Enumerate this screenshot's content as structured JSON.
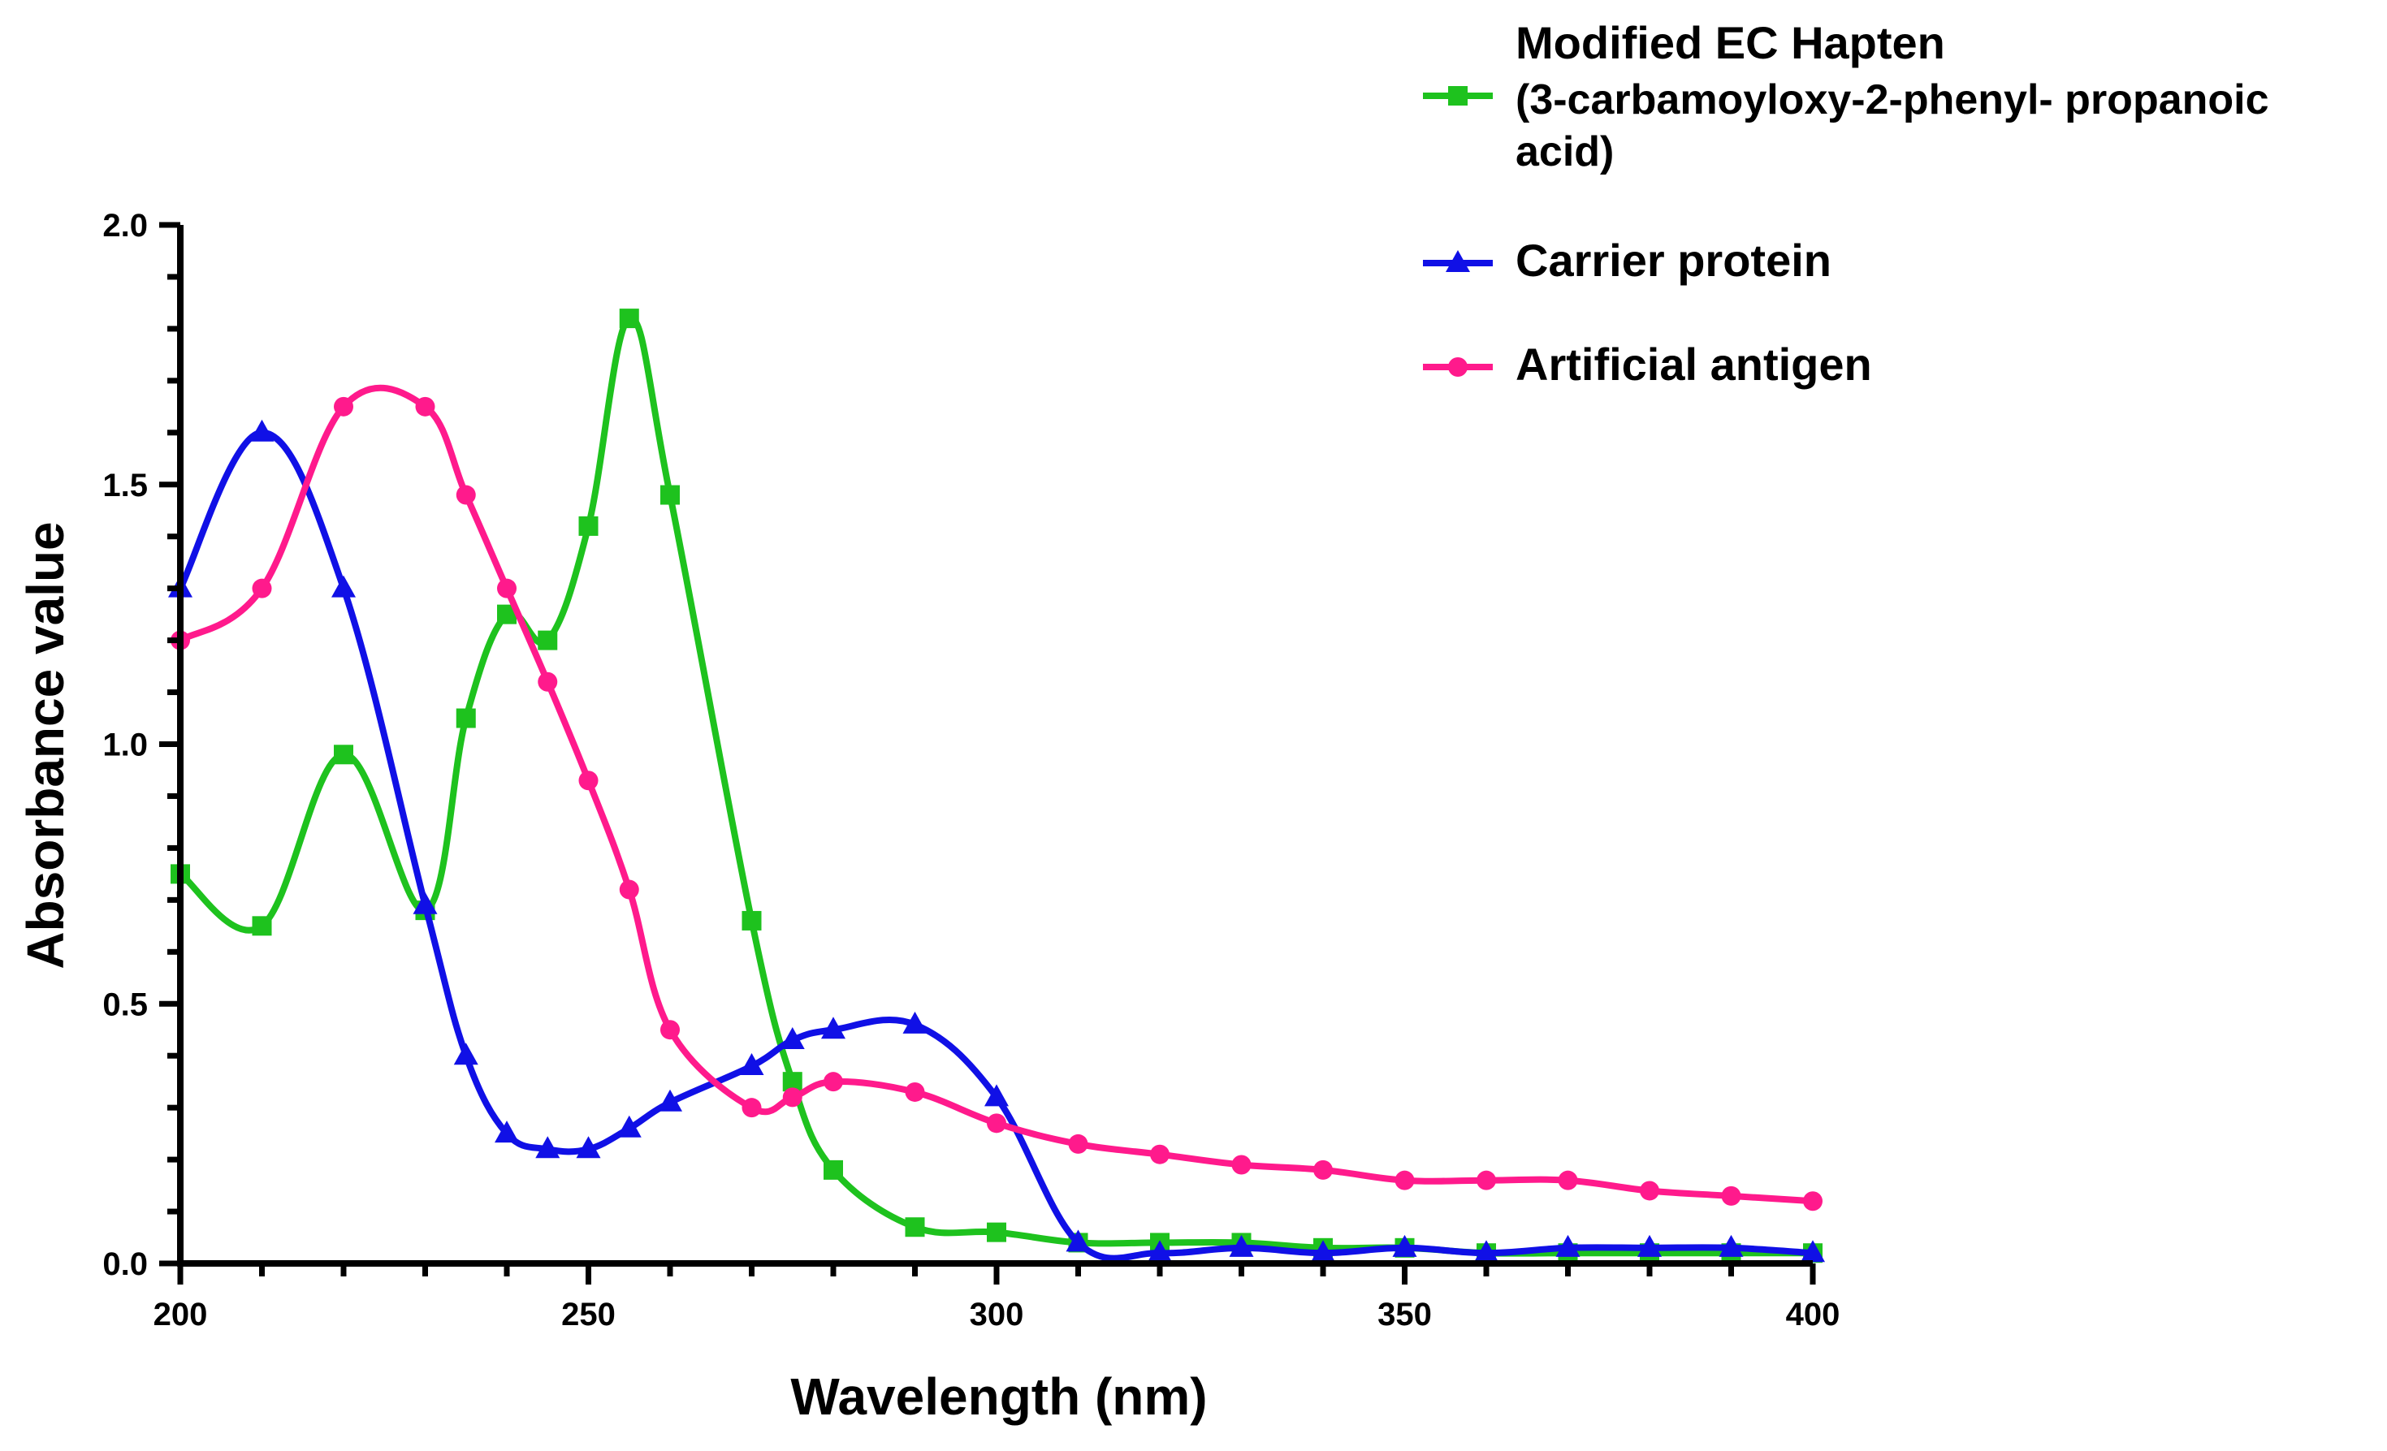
{
  "chart_data": {
    "type": "line",
    "title": "",
    "xlabel": "Wavelength (nm)",
    "ylabel": "Absorbance value",
    "xlim": [
      200,
      400
    ],
    "ylim": [
      0,
      2.0
    ],
    "x_ticks": [
      "200",
      "250",
      "300",
      "350",
      "400"
    ],
    "y_ticks": [
      "0.0",
      "0.5",
      "1.0",
      "1.5",
      "2.0"
    ],
    "grid": false,
    "legend_position": "top-right",
    "series": [
      {
        "name": "Modified EC Hapten",
        "name_lines": [
          "(3-carbamoyloxy-2-phenyl- propanoic",
          "acid)"
        ],
        "color": "#1ec21e",
        "marker": "square",
        "points": [
          [
            200,
            0.75
          ],
          [
            210,
            0.65
          ],
          [
            220,
            0.98
          ],
          [
            230,
            0.68
          ],
          [
            235,
            1.05
          ],
          [
            240,
            1.25
          ],
          [
            245,
            1.2
          ],
          [
            250,
            1.42
          ],
          [
            255,
            1.82
          ],
          [
            260,
            1.48
          ],
          [
            270,
            0.66
          ],
          [
            275,
            0.35
          ],
          [
            280,
            0.18
          ],
          [
            290,
            0.07
          ],
          [
            300,
            0.06
          ],
          [
            310,
            0.04
          ],
          [
            320,
            0.04
          ],
          [
            330,
            0.04
          ],
          [
            340,
            0.03
          ],
          [
            350,
            0.03
          ],
          [
            360,
            0.02
          ],
          [
            370,
            0.02
          ],
          [
            380,
            0.02
          ],
          [
            390,
            0.02
          ],
          [
            400,
            0.02
          ]
        ]
      },
      {
        "name": "Carrier protein",
        "name_lines": [],
        "color": "#1010e6",
        "marker": "triangle",
        "points": [
          [
            200,
            1.3
          ],
          [
            210,
            1.6
          ],
          [
            220,
            1.3
          ],
          [
            230,
            0.69
          ],
          [
            235,
            0.4
          ],
          [
            240,
            0.25
          ],
          [
            245,
            0.22
          ],
          [
            250,
            0.22
          ],
          [
            255,
            0.26
          ],
          [
            260,
            0.31
          ],
          [
            270,
            0.38
          ],
          [
            275,
            0.43
          ],
          [
            280,
            0.45
          ],
          [
            290,
            0.46
          ],
          [
            300,
            0.32
          ],
          [
            310,
            0.04
          ],
          [
            320,
            0.02
          ],
          [
            330,
            0.03
          ],
          [
            340,
            0.02
          ],
          [
            350,
            0.03
          ],
          [
            360,
            0.02
          ],
          [
            370,
            0.03
          ],
          [
            380,
            0.03
          ],
          [
            390,
            0.03
          ],
          [
            400,
            0.02
          ]
        ]
      },
      {
        "name": "Artificial antigen",
        "name_lines": [],
        "color": "#ff1a8c",
        "marker": "circle",
        "points": [
          [
            200,
            1.2
          ],
          [
            210,
            1.3
          ],
          [
            220,
            1.65
          ],
          [
            230,
            1.65
          ],
          [
            235,
            1.48
          ],
          [
            240,
            1.3
          ],
          [
            245,
            1.12
          ],
          [
            250,
            0.93
          ],
          [
            255,
            0.72
          ],
          [
            260,
            0.45
          ],
          [
            270,
            0.3
          ],
          [
            275,
            0.32
          ],
          [
            280,
            0.35
          ],
          [
            290,
            0.33
          ],
          [
            300,
            0.27
          ],
          [
            310,
            0.23
          ],
          [
            320,
            0.21
          ],
          [
            330,
            0.19
          ],
          [
            340,
            0.18
          ],
          [
            350,
            0.16
          ],
          [
            360,
            0.16
          ],
          [
            370,
            0.16
          ],
          [
            380,
            0.14
          ],
          [
            390,
            0.13
          ],
          [
            400,
            0.12
          ]
        ]
      }
    ]
  }
}
